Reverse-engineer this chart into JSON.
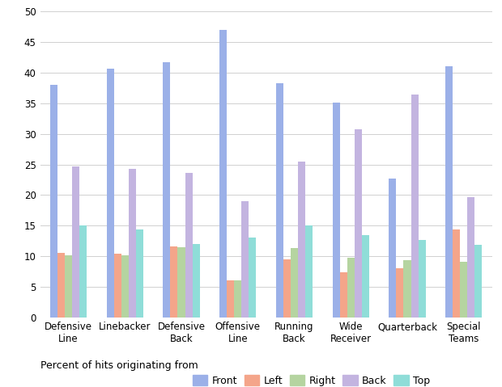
{
  "categories": [
    "Defensive\nLine",
    "Linebacker",
    "Defensive\nBack",
    "Offensive\nLine",
    "Running\nBack",
    "Wide\nReceiver",
    "Quarterback",
    "Special\nTeams"
  ],
  "series": {
    "Front": [
      38.0,
      40.7,
      41.7,
      47.0,
      38.3,
      35.1,
      22.7,
      41.0
    ],
    "Left": [
      10.5,
      10.4,
      11.6,
      6.0,
      9.5,
      7.4,
      8.0,
      14.4
    ],
    "Right": [
      10.2,
      10.2,
      11.5,
      6.1,
      11.3,
      9.8,
      9.3,
      9.1
    ],
    "Back": [
      24.7,
      24.3,
      23.6,
      19.0,
      25.5,
      30.7,
      36.5,
      19.6
    ],
    "Top": [
      15.0,
      14.4,
      12.0,
      13.1,
      15.1,
      13.4,
      12.6,
      11.8
    ]
  },
  "colors": {
    "Front": "#9BB0E8",
    "Left": "#F4A58A",
    "Right": "#B5D4A0",
    "Back": "#C3B4E0",
    "Top": "#8FDDD8"
  },
  "legend_label": "Percent of hits originating from",
  "ylim": [
    0,
    50
  ],
  "yticks": [
    0,
    5,
    10,
    15,
    20,
    25,
    30,
    35,
    40,
    45,
    50
  ],
  "bar_width": 0.13,
  "background_color": "#FFFFFF",
  "grid_color": "#D0D0D0",
  "axis_fontsize": 8.5,
  "legend_fontsize": 9
}
